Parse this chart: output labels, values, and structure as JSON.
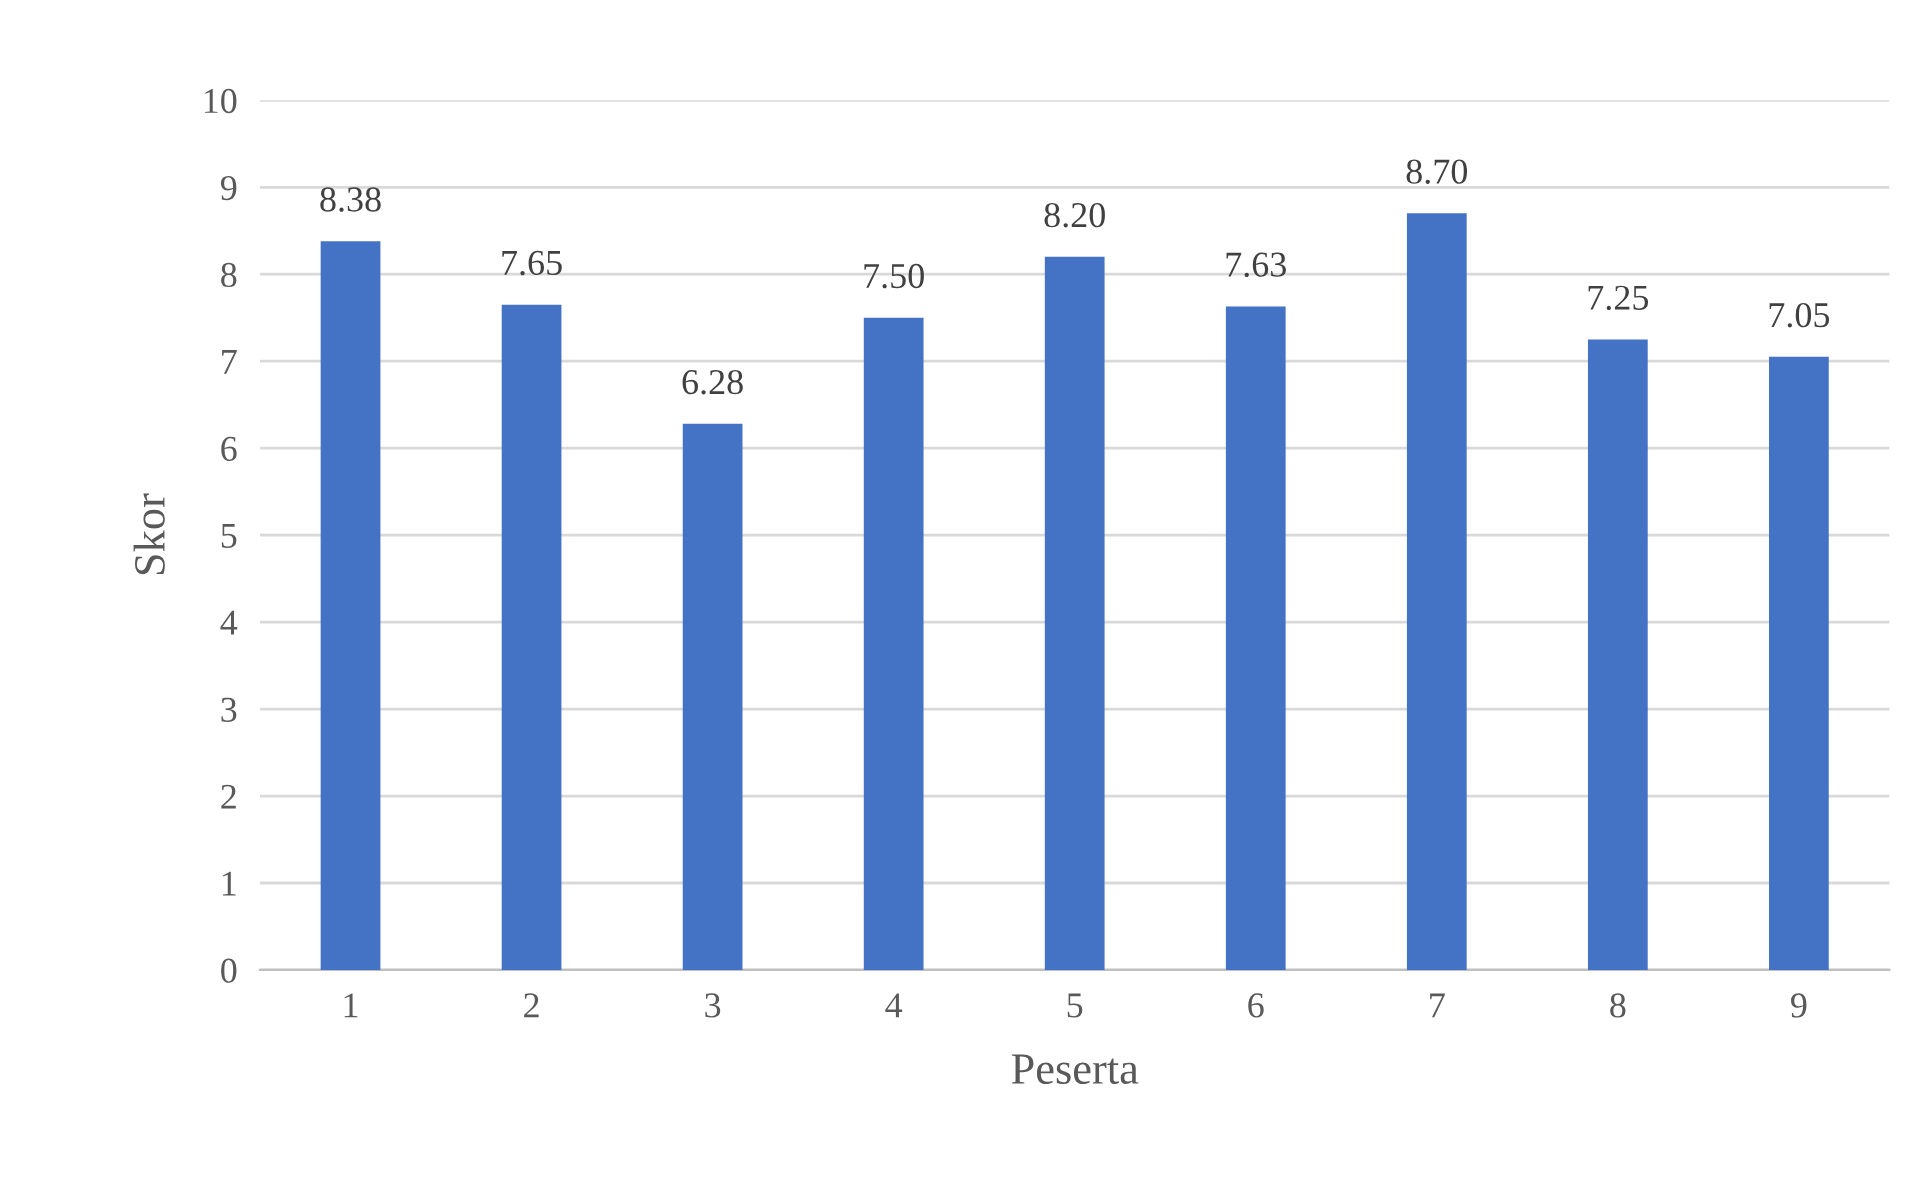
{
  "chart_data": {
    "type": "bar",
    "xlabel": "Peserta",
    "ylabel": "Skor",
    "categories": [
      "1",
      "2",
      "3",
      "4",
      "5",
      "6",
      "7",
      "8",
      "9"
    ],
    "values": [
      8.38,
      7.65,
      6.28,
      7.5,
      8.2,
      7.63,
      8.7,
      7.25,
      7.05
    ],
    "value_labels": [
      "8.38",
      "7.65",
      "6.28",
      "7.50",
      "8.20",
      "7.63",
      "8.70",
      "7.25",
      "7.05"
    ],
    "color": "#4472c4",
    "ylim": [
      0,
      10
    ],
    "yticks": [
      0,
      1,
      2,
      3,
      4,
      5,
      6,
      7,
      8,
      9,
      10
    ],
    "grid": "y"
  }
}
